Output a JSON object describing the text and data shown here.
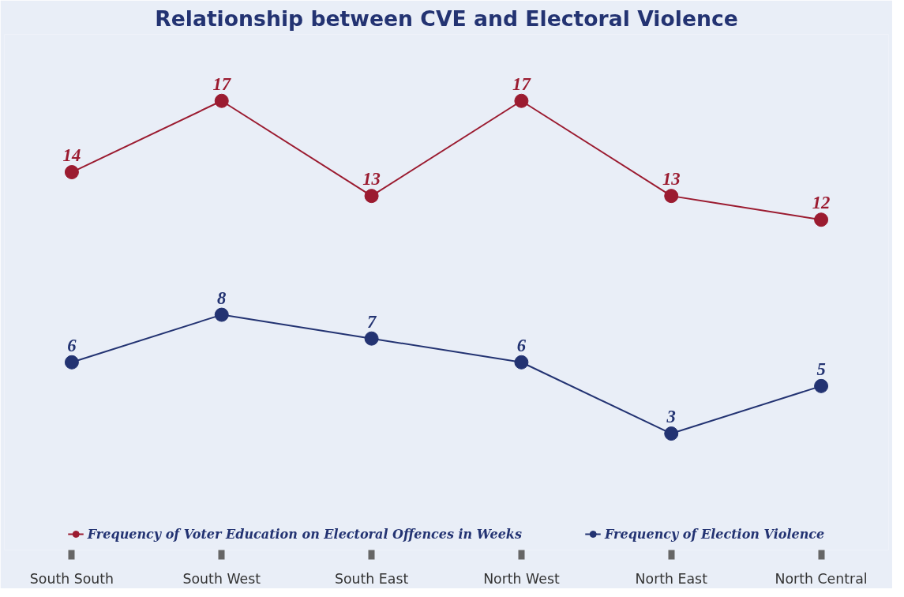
{
  "chart_data": {
    "type": "line",
    "title": "Relationship between CVE and Electoral Violence",
    "categories": [
      "South South",
      "South West",
      "South East",
      "North West",
      "North East",
      "North Central"
    ],
    "series": [
      {
        "name": "Frequency of Voter Education on Electoral Offences in Weeks",
        "color": "#9b1b30",
        "values": [
          14,
          17,
          13,
          17,
          13,
          12
        ]
      },
      {
        "name": "Frequency of Election Violence",
        "color": "#233372",
        "values": [
          6,
          8,
          7,
          6,
          3,
          5
        ]
      }
    ],
    "data_labels": true,
    "marker": "circle",
    "line_style": "solid",
    "legend": "bottom",
    "grid": false,
    "tick_labels": "x"
  }
}
